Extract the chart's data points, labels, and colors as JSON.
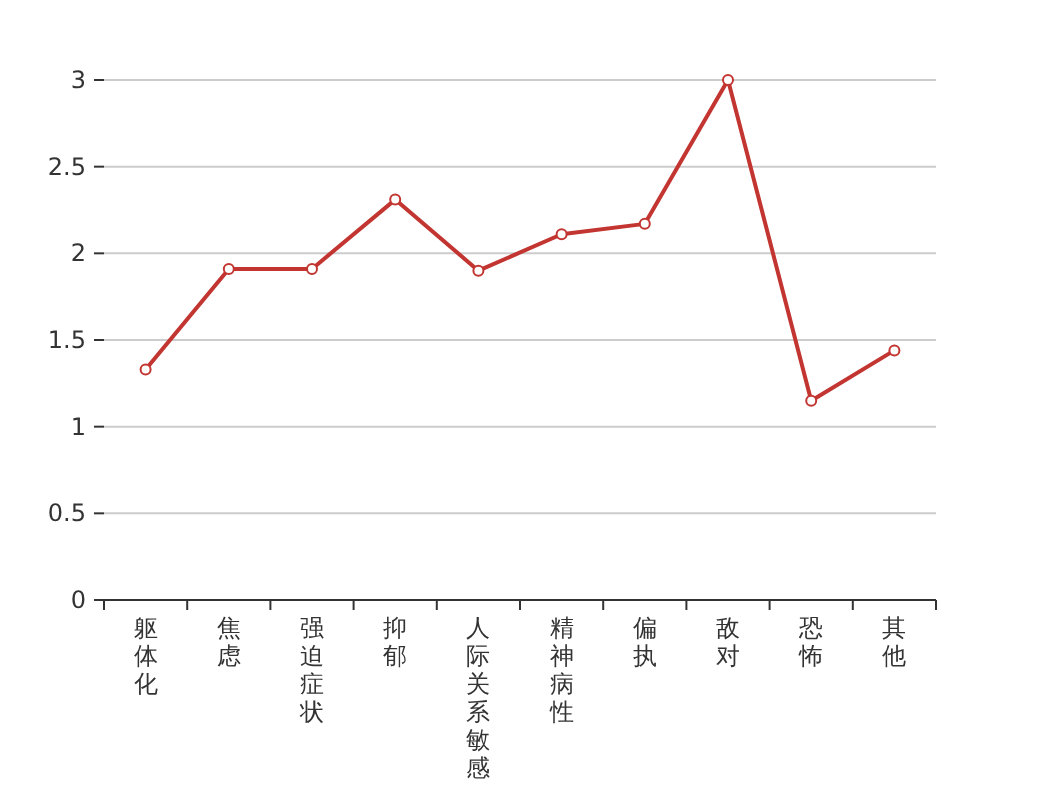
{
  "chart_data": {
    "type": "line",
    "categories": [
      "躯体化",
      "焦虑",
      "强迫症状",
      "抑郁",
      "人际关系敏感",
      "精神病性",
      "偏执",
      "敌对",
      "恐怖",
      "其他"
    ],
    "series": [
      {
        "color": "#c23531",
        "values": [
          1.33,
          1.91,
          1.91,
          2.31,
          1.9,
          2.11,
          2.17,
          3.0,
          1.15,
          1.44
        ]
      }
    ],
    "ylim": [
      0,
      3
    ],
    "yticks": [
      0,
      0.5,
      1,
      1.5,
      2,
      2.5,
      3
    ],
    "grid": "y",
    "marker": "circle",
    "line_style": "solid"
  }
}
